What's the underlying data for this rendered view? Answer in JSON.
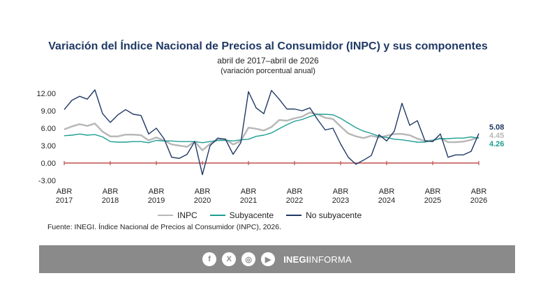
{
  "title": "Variación del Índice Nacional de Precios al Consumidor (INPC) y sus componentes",
  "subtitle": "abril de 2017–abril de 2026",
  "subtitle2": "(variación porcentual anual)",
  "source": "Fuente: INEGI. Índice Nacional de Precios al Consumidor (INPC), 2026.",
  "footer": {
    "brand_bold": "INEGI",
    "brand_rest": "INFORMA",
    "icons": [
      {
        "name": "facebook-icon",
        "glyph": "f"
      },
      {
        "name": "x-icon",
        "glyph": "X"
      },
      {
        "name": "instagram-icon",
        "glyph": "◎"
      },
      {
        "name": "youtube-icon",
        "glyph": "▶"
      }
    ]
  },
  "colors": {
    "inpc": "#b8b8b8",
    "subyacente": "#1e9e93",
    "no_subyacente": "#1f3864",
    "zero_line": "#c0504d",
    "last_label_inpc": "#b8b8b8",
    "last_label_sub": "#1e9e93",
    "last_label_nosub": "#1f3864"
  },
  "chart_data": {
    "type": "line",
    "ylim": [
      -3,
      12
    ],
    "yticks": [
      "12.00",
      "9.00",
      "6.00",
      "3.00",
      "0.00",
      "-3.00"
    ],
    "ytick_values": [
      12,
      9,
      6,
      3,
      0,
      -3
    ],
    "xtick_labels": [
      [
        "ABR",
        "2017"
      ],
      [
        "ABR",
        "2018"
      ],
      [
        "ABR",
        "2019"
      ],
      [
        "ABR",
        "2020"
      ],
      [
        "ABR",
        "2021"
      ],
      [
        "ABR",
        "2022"
      ],
      [
        "ABR",
        "2023"
      ],
      [
        "ABR",
        "2024"
      ],
      [
        "ABR",
        "2025"
      ],
      [
        "ABR",
        "2026"
      ]
    ],
    "grid": false,
    "legend_position": "bottom",
    "x": [
      "2017-04",
      "2017-06",
      "2017-08",
      "2017-10",
      "2017-12",
      "2018-02",
      "2018-04",
      "2018-06",
      "2018-08",
      "2018-10",
      "2018-12",
      "2019-02",
      "2019-04",
      "2019-06",
      "2019-08",
      "2019-10",
      "2019-12",
      "2020-02",
      "2020-04",
      "2020-06",
      "2020-08",
      "2020-10",
      "2020-12",
      "2021-02",
      "2021-04",
      "2021-06",
      "2021-08",
      "2021-10",
      "2021-12",
      "2022-02",
      "2022-04",
      "2022-06",
      "2022-08",
      "2022-10",
      "2022-12",
      "2023-02",
      "2023-04",
      "2023-06",
      "2023-08",
      "2023-10",
      "2023-12",
      "2024-02",
      "2024-04",
      "2024-06",
      "2024-08",
      "2024-10",
      "2024-12",
      "2025-02",
      "2025-04",
      "2025-06",
      "2025-08",
      "2025-10",
      "2025-12",
      "2026-02",
      "2026-04"
    ],
    "series": [
      {
        "name": "INPC",
        "key": "inpc",
        "values": [
          5.8,
          6.3,
          6.7,
          6.4,
          6.8,
          5.4,
          4.6,
          4.6,
          4.9,
          4.9,
          4.8,
          3.9,
          4.4,
          3.9,
          3.2,
          3.0,
          2.8,
          3.7,
          2.2,
          3.3,
          4.0,
          4.1,
          3.2,
          3.8,
          6.1,
          5.9,
          5.6,
          6.2,
          7.4,
          7.3,
          7.7,
          8.0,
          8.7,
          8.4,
          7.8,
          7.6,
          6.3,
          5.1,
          4.6,
          4.3,
          4.7,
          4.4,
          4.7,
          5.0,
          5.0,
          4.8,
          4.2,
          3.8,
          3.9,
          4.3,
          3.6,
          3.6,
          3.7,
          4.0,
          4.45
        ],
        "last_label": "4.45"
      },
      {
        "name": "Subyacente",
        "key": "subyacente",
        "values": [
          4.7,
          4.8,
          5.0,
          4.8,
          4.9,
          4.5,
          3.7,
          3.6,
          3.6,
          3.7,
          3.7,
          3.5,
          3.9,
          3.8,
          3.8,
          3.7,
          3.7,
          3.7,
          3.5,
          3.7,
          3.9,
          3.9,
          3.8,
          4.0,
          4.1,
          4.6,
          4.8,
          5.2,
          5.9,
          6.6,
          7.2,
          7.5,
          8.0,
          8.4,
          8.4,
          8.3,
          7.7,
          6.9,
          6.1,
          5.5,
          5.1,
          4.6,
          4.4,
          4.1,
          4.0,
          3.8,
          3.6,
          3.6,
          3.9,
          4.2,
          4.2,
          4.3,
          4.3,
          4.5,
          4.26
        ],
        "last_label": "4.26"
      },
      {
        "name": "No subyacente",
        "key": "no_subyacente",
        "values": [
          9.2,
          10.8,
          11.5,
          11.0,
          12.6,
          8.5,
          7.0,
          8.3,
          9.2,
          8.4,
          8.2,
          5.0,
          6.0,
          4.2,
          1.0,
          0.8,
          1.5,
          3.7,
          -2.0,
          3.0,
          4.3,
          4.1,
          1.5,
          3.5,
          12.3,
          9.5,
          8.5,
          12.5,
          11.0,
          9.3,
          9.3,
          9.0,
          9.5,
          7.5,
          5.7,
          6.0,
          3.3,
          1.0,
          -0.2,
          0.5,
          1.3,
          4.9,
          3.8,
          5.5,
          10.3,
          6.5,
          7.3,
          3.8,
          3.7,
          5.0,
          1.0,
          1.4,
          1.4,
          2.0,
          5.08
        ],
        "last_label": "5.08"
      }
    ]
  }
}
